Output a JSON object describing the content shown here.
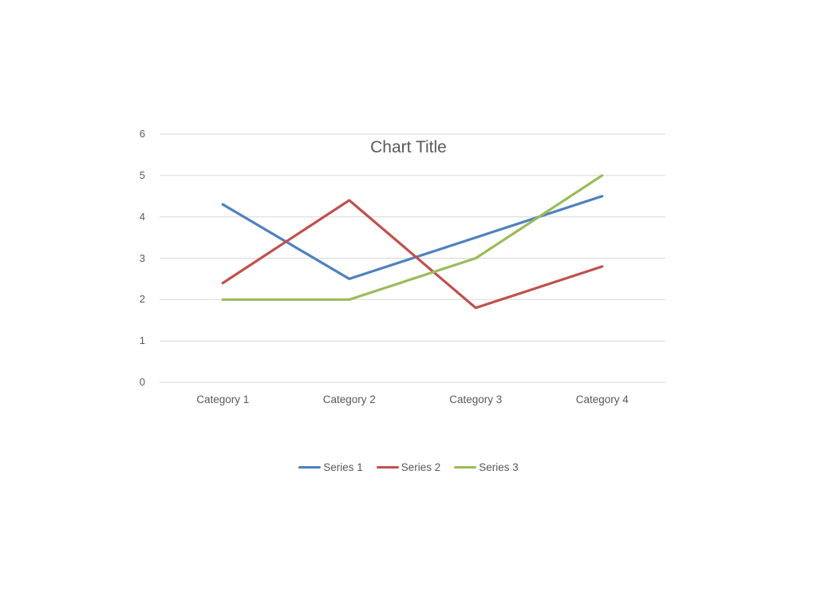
{
  "chart_data": {
    "type": "line",
    "title": "Chart Title",
    "categories": [
      "Category 1",
      "Category 2",
      "Category 3",
      "Category 4"
    ],
    "series": [
      {
        "name": "Series 1",
        "color": "#4F81BD",
        "values": [
          4.3,
          2.5,
          3.5,
          4.5
        ]
      },
      {
        "name": "Series 2",
        "color": "#C0504D",
        "values": [
          2.4,
          4.4,
          1.8,
          2.8
        ]
      },
      {
        "name": "Series 3",
        "color": "#9BBB59",
        "values": [
          2,
          2,
          3,
          5
        ]
      }
    ],
    "ylim": [
      0,
      6
    ],
    "yticks": [
      0,
      1,
      2,
      3,
      4,
      5,
      6
    ],
    "grid": true,
    "legend_position": "bottom",
    "xlabel": "",
    "ylabel": ""
  },
  "colors": {
    "background": "#FFFFFF",
    "text": "#595959",
    "gridline": "#DDDDDD"
  }
}
